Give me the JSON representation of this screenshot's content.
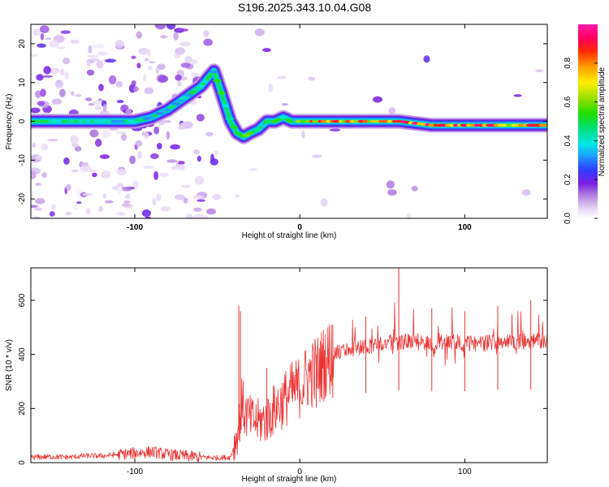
{
  "figure": {
    "title": "S196.2025.343.10.04.G08"
  },
  "chart_data": [
    {
      "type": "heatmap",
      "name": "spectrogram",
      "xlabel": "Height of straight line (km)",
      "ylabel": "Frequency (Hz)",
      "xlim": [
        -163,
        150
      ],
      "ylim": [
        -25,
        25
      ],
      "xticks": [
        -100,
        0,
        100
      ],
      "xtick_labels": [
        "-100",
        "0",
        "100"
      ],
      "yticks": [
        -20,
        -10,
        0,
        10,
        20
      ],
      "ytick_labels": [
        "-20",
        "-10",
        "0",
        "10",
        "20"
      ],
      "colorbar": {
        "label": "Normalized spectral amplitude",
        "range": [
          0,
          1
        ],
        "ticks": [
          0.0,
          0.2,
          0.4,
          0.6,
          0.8
        ],
        "tick_labels": [
          "0.0",
          "0.2",
          "0.4",
          "0.6",
          "0.8"
        ],
        "colormap": "rainbow (white-purple-blue-cyan-green-yellow-orange-red-pink)"
      },
      "ridge": {
        "description": "dominant frequency trace vs height (km, Hz)",
        "x": [
          -163,
          -140,
          -120,
          -100,
          -90,
          -80,
          -70,
          -60,
          -52,
          -48,
          -45,
          -42,
          -38,
          -34,
          -30,
          -25,
          -20,
          -15,
          -10,
          -5,
          0,
          10,
          20,
          40,
          60,
          80,
          100,
          120,
          150
        ],
        "y": [
          0,
          0,
          0,
          0,
          1,
          3,
          6,
          9,
          13,
          8,
          4,
          0,
          -3,
          -4,
          -3,
          -2,
          0,
          0,
          1,
          0,
          0,
          0,
          0,
          0,
          0,
          -1,
          -1,
          -1,
          -1
        ]
      }
    },
    {
      "type": "line",
      "name": "snr",
      "xlabel": "Height of straight line (km)",
      "ylabel": "SNR (10 * v/v)",
      "xlim": [
        -163,
        150
      ],
      "ylim": [
        0,
        720
      ],
      "xticks": [
        -100,
        0,
        100
      ],
      "xtick_labels": [
        "-100",
        "0",
        "100"
      ],
      "yticks": [
        0,
        200,
        400,
        600
      ],
      "ytick_labels": [
        "0",
        "200",
        "400",
        "600"
      ],
      "color": "#ee3333",
      "series": [
        {
          "name": "SNR",
          "x": [
            -163,
            -150,
            -140,
            -130,
            -120,
            -110,
            -100,
            -90,
            -80,
            -70,
            -60,
            -50,
            -42,
            -38,
            -35,
            -33,
            -30,
            -25,
            -20,
            -15,
            -10,
            -5,
            0,
            5,
            10,
            15,
            20,
            25,
            30,
            40,
            50,
            60,
            70,
            80,
            90,
            100,
            110,
            120,
            130,
            140,
            150
          ],
          "y": [
            20,
            22,
            20,
            25,
            25,
            30,
            35,
            40,
            30,
            25,
            20,
            18,
            20,
            100,
            220,
            180,
            160,
            150,
            160,
            200,
            230,
            260,
            280,
            320,
            340,
            370,
            400,
            410,
            420,
            430,
            440,
            445,
            450,
            440,
            450,
            440,
            440,
            450,
            445,
            450,
            450
          ]
        }
      ],
      "spikes": {
        "x": [
          -37,
          -36,
          -20,
          10,
          20,
          40,
          60,
          80,
          100,
          120,
          140
        ],
        "y": [
          580,
          560,
          350,
          400,
          510,
          540,
          720,
          570,
          560,
          580,
          600
        ]
      }
    }
  ]
}
